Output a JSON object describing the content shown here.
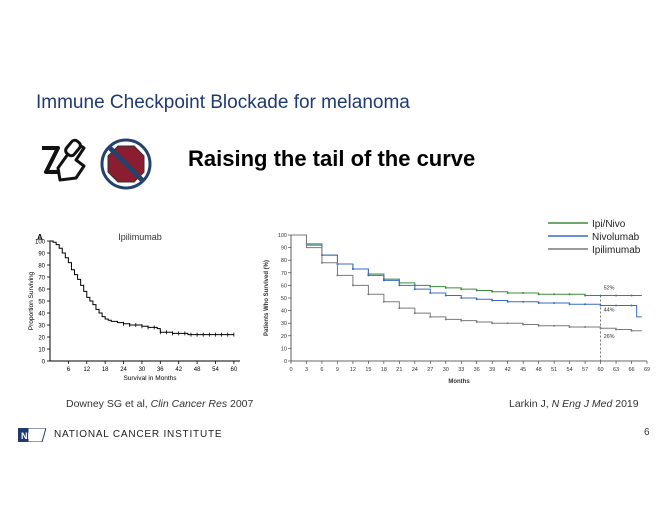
{
  "slide": {
    "title": "Immune Checkpoint Blockade for melanoma",
    "subtitle": "Raising the tail of the curve",
    "page_number": "6",
    "footer": {
      "logo_text": "NIH",
      "text": "NATIONAL CANCER INSTITUTE"
    },
    "citations": {
      "left": {
        "authors": "Downey SG et al, ",
        "journal": "Clin Cancer Res",
        "year": " 2007"
      },
      "right": {
        "authors": "Larkin J, ",
        "journal": "N Eng J Med",
        "year": " 2019"
      }
    },
    "icons": [
      "pill-hand-icon",
      "stop-sign-icon"
    ]
  },
  "chart_data": [
    {
      "type": "line",
      "panel_label": "A",
      "title": "Ipilimumab",
      "xlabel": "Survival in Months",
      "ylabel": "Proportion Surviving",
      "xlim": [
        0,
        62
      ],
      "ylim": [
        0,
        100
      ],
      "xticks": [
        6,
        12,
        18,
        24,
        30,
        36,
        42,
        48,
        54,
        60
      ],
      "yticks": [
        0,
        10,
        20,
        30,
        40,
        50,
        60,
        70,
        80,
        90,
        100
      ],
      "series": [
        {
          "name": "Ipilimumab",
          "color": "#000000",
          "x": [
            0,
            1,
            2,
            3,
            4,
            5,
            6,
            7,
            8,
            9,
            10,
            11,
            12,
            13,
            14,
            15,
            16,
            17,
            18,
            19,
            20,
            22,
            24,
            26,
            28,
            30,
            32,
            34,
            35,
            36,
            40,
            45,
            50,
            55,
            60
          ],
          "y": [
            100,
            99,
            97,
            94,
            90,
            86,
            82,
            76,
            72,
            68,
            63,
            58,
            53,
            50,
            47,
            43,
            40,
            37,
            35,
            34,
            33,
            32,
            31,
            30,
            30,
            29,
            28,
            28,
            27,
            24,
            23,
            22,
            22,
            22,
            22
          ]
        }
      ]
    },
    {
      "type": "line",
      "xlabel": "Months",
      "ylabel": "Patients Who Survived (%)",
      "xlim": [
        0,
        69
      ],
      "ylim": [
        0,
        100
      ],
      "xticks": [
        0,
        3,
        6,
        9,
        12,
        15,
        18,
        21,
        24,
        27,
        30,
        33,
        36,
        39,
        42,
        45,
        48,
        51,
        54,
        57,
        60,
        63,
        66,
        69
      ],
      "yticks": [
        0,
        10,
        20,
        30,
        40,
        50,
        60,
        70,
        80,
        90,
        100
      ],
      "legend": "top-right",
      "reference_x": 60,
      "series": [
        {
          "name": "Ipi/Nivo",
          "color": "#3c8c3c",
          "x": [
            0,
            3,
            6,
            9,
            12,
            15,
            18,
            21,
            24,
            27,
            30,
            33,
            36,
            39,
            42,
            45,
            48,
            51,
            54,
            57,
            60,
            63,
            66,
            68
          ],
          "y": [
            100,
            93,
            84,
            77,
            73,
            69,
            65,
            62,
            60,
            59,
            58,
            57,
            56,
            55,
            54,
            54,
            53,
            53,
            53,
            52,
            52,
            52,
            52,
            52
          ],
          "end_label": "52%"
        },
        {
          "name": "Nivolumab",
          "color": "#3a6bc4",
          "x": [
            0,
            3,
            6,
            9,
            12,
            15,
            18,
            21,
            24,
            27,
            30,
            33,
            36,
            39,
            42,
            45,
            48,
            51,
            54,
            57,
            60,
            63,
            66,
            67,
            68
          ],
          "y": [
            100,
            92,
            84,
            77,
            73,
            68,
            64,
            60,
            57,
            54,
            52,
            50,
            49,
            48,
            47,
            47,
            46,
            46,
            45,
            45,
            44,
            44,
            44,
            35,
            35
          ],
          "end_label": "44%"
        },
        {
          "name": "Ipilimumab",
          "color": "#7a7a7a",
          "x": [
            0,
            3,
            6,
            9,
            12,
            15,
            18,
            21,
            24,
            27,
            30,
            33,
            36,
            39,
            42,
            45,
            48,
            51,
            54,
            57,
            60,
            63,
            66,
            68
          ],
          "y": [
            100,
            90,
            78,
            68,
            60,
            53,
            47,
            42,
            38,
            35,
            33,
            32,
            31,
            30,
            30,
            29,
            28,
            28,
            27,
            27,
            26,
            25,
            24,
            24
          ],
          "end_label": "26%"
        }
      ]
    }
  ]
}
